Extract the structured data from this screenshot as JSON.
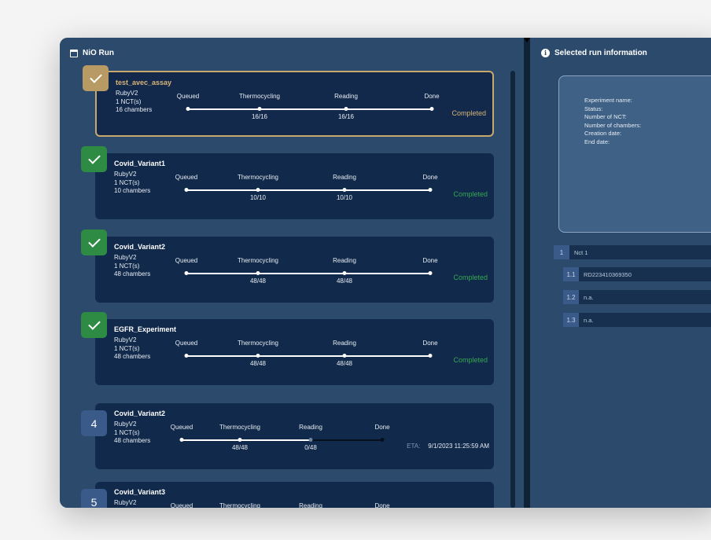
{
  "left_panel": {
    "title": "NiO Run",
    "icon": "calendar-icon"
  },
  "right_panel": {
    "title": "Selected run information",
    "icon": "info-icon",
    "fields": [
      "Experiment name:",
      "Status:",
      "Number of NCT:",
      "Number of chambers:",
      "Creation date:",
      "End date:"
    ],
    "tree": [
      {
        "num": "1",
        "label": "Nct 1"
      },
      {
        "num": "1.1",
        "label": "RD223410369350"
      },
      {
        "num": "1.2",
        "label": "n.a."
      },
      {
        "num": "1.3",
        "label": "n.a."
      }
    ]
  },
  "step_labels": [
    "Queued",
    "Thermocycling",
    "Reading",
    "Done"
  ],
  "eta_label": "ETA:",
  "runs": [
    {
      "badge": "check",
      "name": "test_avec_assay",
      "device": "RubyV2",
      "nct": "1 NCT(s)",
      "chambers": "16 chambers",
      "thermo": "16/16",
      "reading": "16/16",
      "status": "Completed",
      "progress": 1.0
    },
    {
      "badge": "check",
      "name": "Covid_Variant1",
      "device": "RubyV2",
      "nct": "1 NCT(s)",
      "chambers": "10 chambers",
      "thermo": "10/10",
      "reading": "10/10",
      "status": "Completed",
      "progress": 1.0
    },
    {
      "badge": "check",
      "name": "Covid_Variant2",
      "device": "RubyV2",
      "nct": "1 NCT(s)",
      "chambers": "48 chambers",
      "thermo": "48/48",
      "reading": "48/48",
      "status": "Completed",
      "progress": 1.0
    },
    {
      "badge": "check",
      "name": "EGFR_Experiment",
      "device": "RubyV2",
      "nct": "1 NCT(s)",
      "chambers": "48 chambers",
      "thermo": "48/48",
      "reading": "48/48",
      "status": "Completed",
      "progress": 1.0
    },
    {
      "badge": "4",
      "name": "Covid_Variant2",
      "device": "RubyV2",
      "nct": "1 NCT(s)",
      "chambers": "48 chambers",
      "thermo": "48/48",
      "reading": "0/48",
      "eta": "9/1/2023 11:25:59 AM",
      "progress": 0.5
    },
    {
      "badge": "5",
      "name": "Covid_Variant3",
      "device": "RubyV2",
      "nct": "",
      "chambers": "",
      "thermo": "",
      "reading": "",
      "progress": 0
    }
  ],
  "colors": {
    "selected": "#c9a86b",
    "completed": "#34a853",
    "panel": "#2c4a6b",
    "card": "#11294a"
  }
}
